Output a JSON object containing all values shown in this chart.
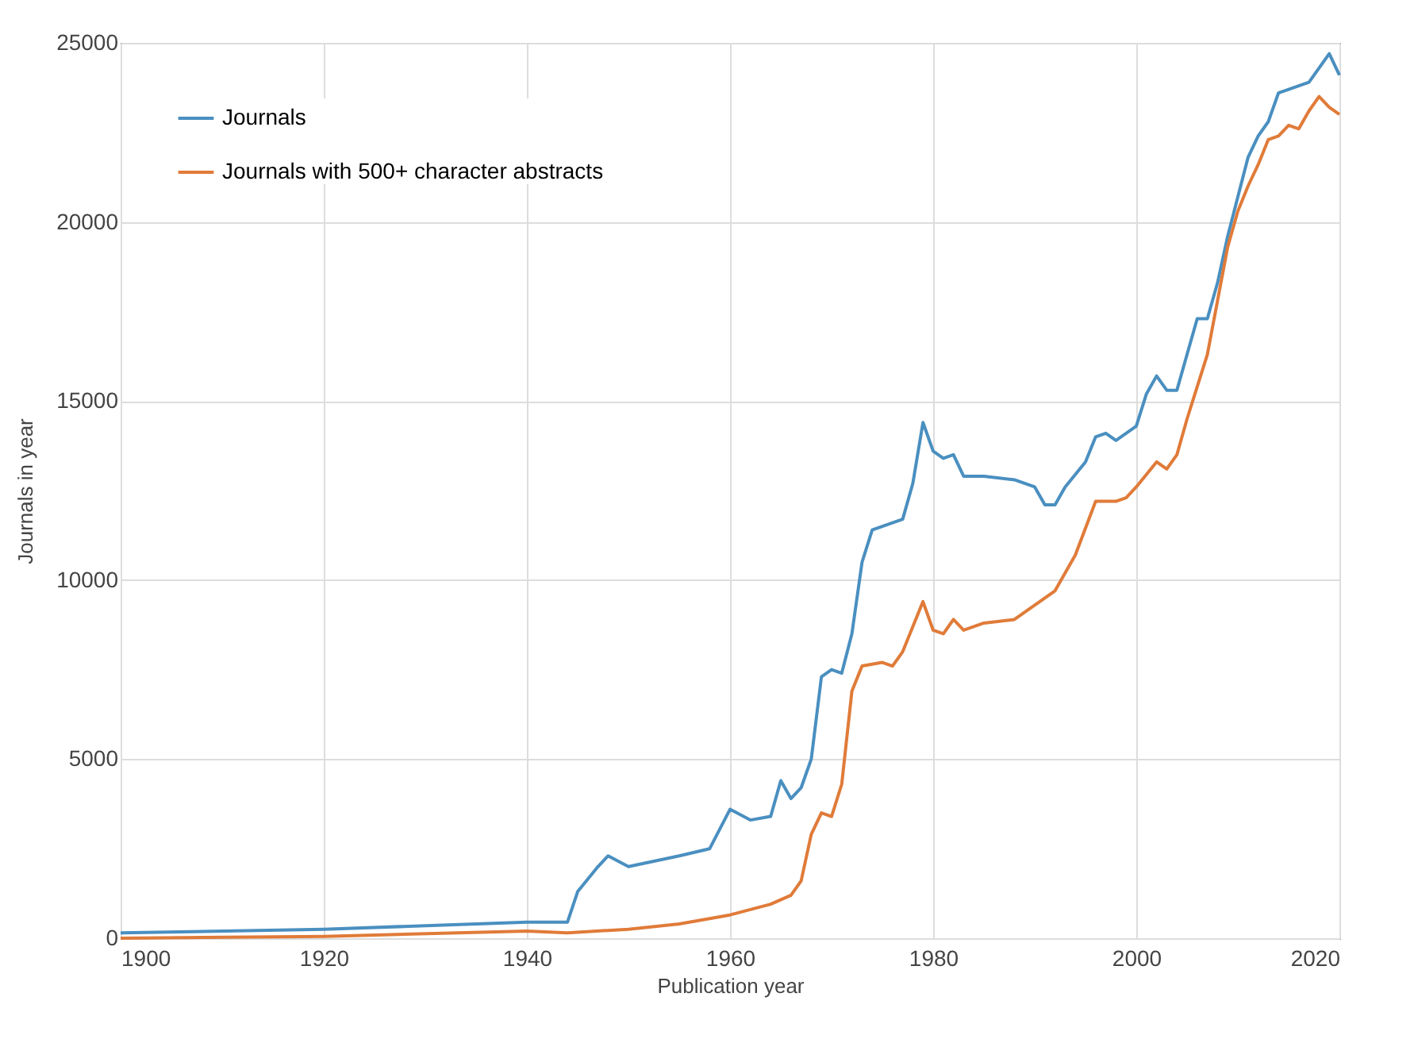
{
  "chart_data": {
    "type": "line",
    "xlabel": "Publication year",
    "ylabel": "Journals in year",
    "xlim": [
      1900,
      2020
    ],
    "xticks": [
      1900,
      1920,
      1940,
      1960,
      1980,
      2000,
      2020
    ],
    "ylim": [
      0,
      25000
    ],
    "yticks": [
      0,
      5000,
      10000,
      15000,
      20000,
      25000
    ],
    "grid": true,
    "legend": "top left",
    "marker": "none",
    "line_style": "solid",
    "series": [
      {
        "name": "Journals",
        "color": "#4a8fc0",
        "x": [
          1900,
          1920,
          1940,
          1944,
          1945,
          1947,
          1948,
          1950,
          1955,
          1958,
          1960,
          1962,
          1964,
          1965,
          1966,
          1967,
          1968,
          1969,
          1970,
          1971,
          1972,
          1973,
          1974,
          1975,
          1977,
          1978,
          1979,
          1980,
          1981,
          1982,
          1983,
          1985,
          1988,
          1990,
          1991,
          1992,
          1993,
          1995,
          1996,
          1997,
          1998,
          1999,
          2000,
          2001,
          2002,
          2003,
          2004,
          2005,
          2006,
          2007,
          2008,
          2009,
          2010,
          2011,
          2012,
          2013,
          2014,
          2015,
          2016,
          2017,
          2018,
          2019,
          2020
        ],
        "values": [
          150,
          250,
          450,
          450,
          1300,
          2000,
          2300,
          2000,
          2300,
          2500,
          3600,
          3300,
          3400,
          4400,
          3900,
          4200,
          5000,
          7300,
          7500,
          7400,
          8500,
          10500,
          11400,
          11500,
          11700,
          12700,
          14400,
          13600,
          13400,
          13500,
          12900,
          12900,
          12800,
          12600,
          12100,
          12100,
          12600,
          13300,
          14000,
          14100,
          13900,
          14100,
          14300,
          15200,
          15700,
          15300,
          15300,
          16300,
          17300,
          17300,
          18300,
          19600,
          20700,
          21800,
          22400,
          22800,
          23600,
          23700,
          23800,
          23900,
          24300,
          24700,
          24100
        ]
      },
      {
        "name": "Journals with 500+ character abstracts",
        "color": "#e07b39",
        "x": [
          1900,
          1920,
          1940,
          1944,
          1950,
          1955,
          1960,
          1964,
          1966,
          1967,
          1968,
          1969,
          1970,
          1971,
          1972,
          1973,
          1975,
          1976,
          1977,
          1979,
          1980,
          1981,
          1982,
          1983,
          1985,
          1988,
          1990,
          1992,
          1994,
          1996,
          1998,
          1999,
          2000,
          2002,
          2003,
          2004,
          2005,
          2006,
          2007,
          2008,
          2009,
          2010,
          2011,
          2012,
          2013,
          2014,
          2015,
          2016,
          2017,
          2018,
          2019,
          2020
        ],
        "values": [
          0,
          50,
          200,
          150,
          250,
          400,
          650,
          950,
          1200,
          1600,
          2900,
          3500,
          3400,
          4300,
          6900,
          7600,
          7700,
          7600,
          8000,
          9400,
          8600,
          8500,
          8900,
          8600,
          8800,
          8900,
          9300,
          9700,
          10700,
          12200,
          12200,
          12300,
          12600,
          13300,
          13100,
          13500,
          14500,
          15400,
          16300,
          17800,
          19300,
          20300,
          21000,
          21600,
          22300,
          22400,
          22700,
          22600,
          23100,
          23500,
          23200,
          23000
        ]
      }
    ]
  }
}
